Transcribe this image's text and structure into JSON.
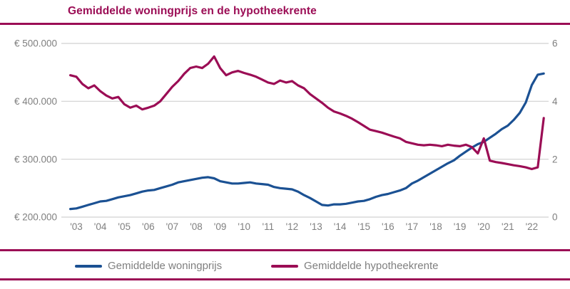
{
  "title": "Gemiddelde woningprijs en de hypotheekrente",
  "colors": {
    "accent": "#9B0D55",
    "blue": "#1B5193",
    "grid": "#D0D0D0",
    "axis_text": "#7F7F7F",
    "background": "#FFFFFF"
  },
  "legend": [
    {
      "label": "Gemiddelde woningprijs",
      "color": "#1B5193"
    },
    {
      "label": "Gemiddelde hypotheekrente",
      "color": "#9B0D55"
    }
  ],
  "chart_data": {
    "type": "line",
    "title": "Gemiddelde woningprijs en de hypotheekrente",
    "grid": true,
    "legend_position": "bottom",
    "x_tick_labels": [
      "'03",
      "'04",
      "'05",
      "'06",
      "'07",
      "'08",
      "'09",
      "'10",
      "'11",
      "'12",
      "'13",
      "'14",
      "'15",
      "'16",
      "'17",
      "'18",
      "'19",
      "'20",
      "'21",
      "'22"
    ],
    "x_tick_years": [
      2003,
      2004,
      2005,
      2006,
      2007,
      2008,
      2009,
      2010,
      2011,
      2012,
      2013,
      2014,
      2015,
      2016,
      2017,
      2018,
      2019,
      2020,
      2021,
      2022
    ],
    "left_axis": {
      "tick_labels": [
        "€ 500.000",
        "€ 400.000",
        "€ 300.000",
        "€ 200.000"
      ],
      "tick_values": [
        500000,
        400000,
        300000,
        200000
      ],
      "range": [
        200000,
        500000
      ]
    },
    "right_axis": {
      "tick_labels": [
        "6",
        "4",
        "2",
        "0"
      ],
      "tick_values": [
        6,
        4,
        2,
        0
      ],
      "range": [
        0,
        6
      ]
    },
    "x": [
      2002.75,
      2003,
      2003.25,
      2003.5,
      2003.75,
      2004,
      2004.25,
      2004.5,
      2004.75,
      2005,
      2005.25,
      2005.5,
      2005.75,
      2006,
      2006.25,
      2006.5,
      2006.75,
      2007,
      2007.25,
      2007.5,
      2007.75,
      2008,
      2008.25,
      2008.5,
      2008.75,
      2009,
      2009.25,
      2009.5,
      2009.75,
      2010,
      2010.25,
      2010.5,
      2010.75,
      2011,
      2011.25,
      2011.5,
      2011.75,
      2012,
      2012.25,
      2012.5,
      2012.75,
      2013,
      2013.25,
      2013.5,
      2013.75,
      2014,
      2014.25,
      2014.5,
      2014.75,
      2015,
      2015.25,
      2015.5,
      2015.75,
      2016,
      2016.25,
      2016.5,
      2016.75,
      2017,
      2017.25,
      2017.5,
      2017.75,
      2018,
      2018.25,
      2018.5,
      2018.75,
      2019,
      2019.25,
      2019.5,
      2019.75,
      2020,
      2020.25,
      2020.5,
      2020.75,
      2021,
      2021.25,
      2021.5,
      2021.75,
      2022,
      2022.25,
      2022.5
    ],
    "series": [
      {
        "id": "woningprijs-line",
        "name": "Gemiddelde woningprijs",
        "axis": "left",
        "color": "#1B5193",
        "values": [
          214000,
          215000,
          218000,
          221000,
          224000,
          227000,
          228000,
          231000,
          234000,
          236000,
          238000,
          241000,
          244000,
          246000,
          247000,
          250000,
          253000,
          256000,
          260000,
          262000,
          264000,
          266000,
          268000,
          269000,
          267000,
          262000,
          260000,
          258000,
          258000,
          259000,
          260000,
          258000,
          257000,
          256000,
          252000,
          250000,
          249000,
          248000,
          244000,
          238000,
          233000,
          227000,
          221000,
          220000,
          222000,
          222000,
          223000,
          225000,
          227000,
          228000,
          231000,
          235000,
          238000,
          240000,
          243000,
          246000,
          250000,
          258000,
          263000,
          269000,
          275000,
          281000,
          287000,
          293000,
          298000,
          306000,
          313000,
          320000,
          326000,
          330000,
          337000,
          344000,
          352000,
          358000,
          368000,
          380000,
          398000,
          428000,
          446000,
          448000
        ]
      },
      {
        "id": "hypotheekrente-line",
        "name": "Gemiddelde hypotheekrente",
        "axis": "right",
        "color": "#9B0D55",
        "values": [
          4.9,
          4.85,
          4.6,
          4.45,
          4.55,
          4.35,
          4.2,
          4.1,
          4.15,
          3.9,
          3.78,
          3.85,
          3.72,
          3.78,
          3.85,
          4.0,
          4.25,
          4.5,
          4.7,
          4.95,
          5.15,
          5.2,
          5.15,
          5.3,
          5.55,
          5.15,
          4.9,
          5.0,
          5.05,
          4.98,
          4.92,
          4.85,
          4.75,
          4.65,
          4.6,
          4.72,
          4.65,
          4.7,
          4.55,
          4.45,
          4.25,
          4.1,
          3.95,
          3.78,
          3.65,
          3.58,
          3.5,
          3.4,
          3.28,
          3.15,
          3.02,
          2.97,
          2.92,
          2.85,
          2.78,
          2.72,
          2.6,
          2.55,
          2.5,
          2.48,
          2.5,
          2.48,
          2.45,
          2.5,
          2.47,
          2.45,
          2.5,
          2.42,
          2.2,
          2.72,
          1.95,
          1.9,
          1.87,
          1.83,
          1.79,
          1.76,
          1.72,
          1.66,
          1.72,
          3.42
        ]
      }
    ]
  }
}
